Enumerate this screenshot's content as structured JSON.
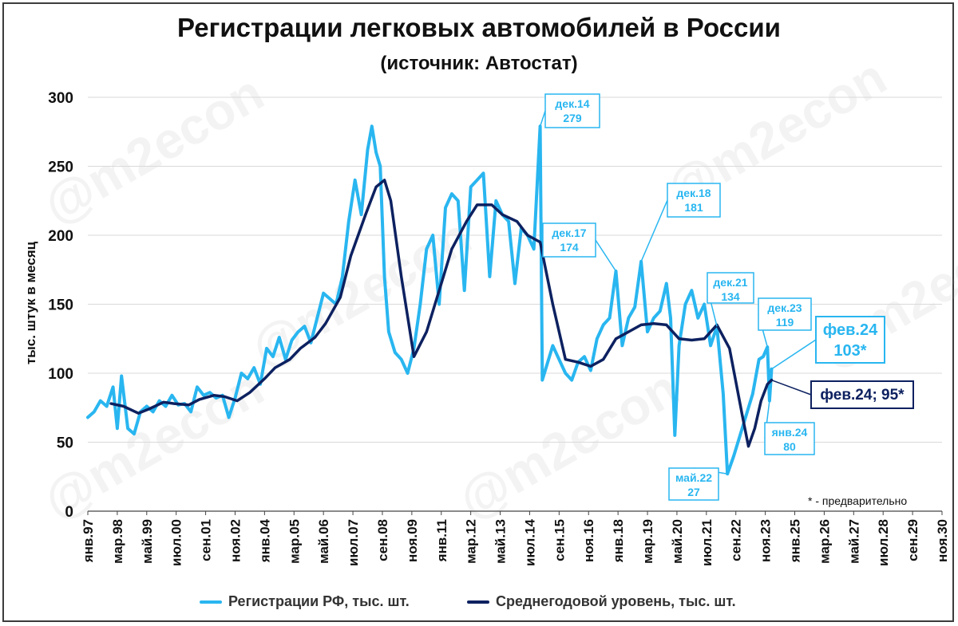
{
  "title": "Регистрации легковых автомобилей в России",
  "subtitle": "(источник: Автостат)",
  "watermark": "@m2econ",
  "footnote": "* - предварительно",
  "colors": {
    "registrations": "#29b6f0",
    "average": "#0d2160",
    "callout": "#29b6f0",
    "callout_dark": "#0d2160"
  },
  "chart_data": {
    "type": "line",
    "ylabel": "тыс. штук в месяц",
    "ylim": [
      0,
      300
    ],
    "yticks": [
      0,
      50,
      100,
      150,
      200,
      250,
      300
    ],
    "x_tick_labels": [
      "янв.97",
      "мар.98",
      "май.99",
      "июл.00",
      "сен.01",
      "ноя.02",
      "янв.04",
      "мар.05",
      "май.06",
      "июл.07",
      "сен.08",
      "ноя.09",
      "янв.11",
      "мар.12",
      "май.13",
      "июл.14",
      "сен.15",
      "ноя.16",
      "янв.18",
      "мар.19",
      "май.20",
      "июл.21",
      "сен.22",
      "ноя.23",
      "янв.25",
      "мар.26",
      "май.27",
      "июл.28",
      "сен.29",
      "ноя.30"
    ],
    "series": [
      {
        "name": "Регистрации РФ, тыс. шт.",
        "color": "#29b6f0",
        "points": [
          [
            "1997-01",
            68
          ],
          [
            "1997-04",
            72
          ],
          [
            "1997-07",
            80
          ],
          [
            "1997-10",
            76
          ],
          [
            "1998-01",
            90
          ],
          [
            "1998-03",
            60
          ],
          [
            "1998-05",
            98
          ],
          [
            "1998-08",
            60
          ],
          [
            "1998-11",
            56
          ],
          [
            "1999-02",
            72
          ],
          [
            "1999-05",
            76
          ],
          [
            "1999-08",
            72
          ],
          [
            "1999-11",
            80
          ],
          [
            "2000-02",
            76
          ],
          [
            "2000-05",
            84
          ],
          [
            "2000-08",
            77
          ],
          [
            "2000-11",
            78
          ],
          [
            "2001-02",
            72
          ],
          [
            "2001-05",
            90
          ],
          [
            "2001-08",
            84
          ],
          [
            "2001-11",
            86
          ],
          [
            "2002-02",
            82
          ],
          [
            "2002-05",
            84
          ],
          [
            "2002-08",
            68
          ],
          [
            "2002-11",
            82
          ],
          [
            "2003-02",
            100
          ],
          [
            "2003-05",
            96
          ],
          [
            "2003-08",
            104
          ],
          [
            "2003-11",
            92
          ],
          [
            "2004-02",
            118
          ],
          [
            "2004-05",
            112
          ],
          [
            "2004-08",
            126
          ],
          [
            "2004-11",
            110
          ],
          [
            "2005-02",
            124
          ],
          [
            "2005-05",
            130
          ],
          [
            "2005-08",
            134
          ],
          [
            "2005-11",
            122
          ],
          [
            "2006-02",
            140
          ],
          [
            "2006-05",
            158
          ],
          [
            "2006-08",
            154
          ],
          [
            "2006-11",
            150
          ],
          [
            "2007-02",
            170
          ],
          [
            "2007-05",
            210
          ],
          [
            "2007-08",
            240
          ],
          [
            "2007-11",
            215
          ],
          [
            "2008-02",
            262
          ],
          [
            "2008-04",
            279
          ],
          [
            "2008-06",
            260
          ],
          [
            "2008-08",
            250
          ],
          [
            "2008-10",
            170
          ],
          [
            "2008-12",
            130
          ],
          [
            "2009-03",
            115
          ],
          [
            "2009-06",
            110
          ],
          [
            "2009-09",
            100
          ],
          [
            "2009-12",
            118
          ],
          [
            "2010-03",
            150
          ],
          [
            "2010-06",
            190
          ],
          [
            "2010-09",
            200
          ],
          [
            "2010-12",
            150
          ],
          [
            "2011-03",
            220
          ],
          [
            "2011-06",
            230
          ],
          [
            "2011-09",
            225
          ],
          [
            "2011-12",
            160
          ],
          [
            "2012-03",
            235
          ],
          [
            "2012-06",
            240
          ],
          [
            "2012-09",
            245
          ],
          [
            "2012-12",
            170
          ],
          [
            "2013-03",
            225
          ],
          [
            "2013-06",
            215
          ],
          [
            "2013-09",
            210
          ],
          [
            "2013-12",
            165
          ],
          [
            "2014-03",
            205
          ],
          [
            "2014-06",
            200
          ],
          [
            "2014-09",
            190
          ],
          [
            "2014-12",
            279
          ],
          [
            "2015-01",
            95
          ],
          [
            "2015-03",
            105
          ],
          [
            "2015-06",
            120
          ],
          [
            "2015-09",
            110
          ],
          [
            "2015-12",
            100
          ],
          [
            "2016-03",
            95
          ],
          [
            "2016-06",
            108
          ],
          [
            "2016-09",
            112
          ],
          [
            "2016-12",
            102
          ],
          [
            "2017-03",
            125
          ],
          [
            "2017-06",
            135
          ],
          [
            "2017-09",
            140
          ],
          [
            "2017-12",
            174
          ],
          [
            "2018-03",
            120
          ],
          [
            "2018-06",
            140
          ],
          [
            "2018-09",
            148
          ],
          [
            "2018-12",
            181
          ],
          [
            "2019-03",
            130
          ],
          [
            "2019-06",
            140
          ],
          [
            "2019-09",
            145
          ],
          [
            "2019-12",
            165
          ],
          [
            "2020-02",
            140
          ],
          [
            "2020-04",
            55
          ],
          [
            "2020-06",
            120
          ],
          [
            "2020-09",
            150
          ],
          [
            "2020-12",
            160
          ],
          [
            "2021-03",
            140
          ],
          [
            "2021-06",
            150
          ],
          [
            "2021-09",
            120
          ],
          [
            "2021-12",
            134
          ],
          [
            "2022-03",
            85
          ],
          [
            "2022-05",
            27
          ],
          [
            "2022-08",
            40
          ],
          [
            "2022-11",
            55
          ],
          [
            "2023-02",
            70
          ],
          [
            "2023-05",
            85
          ],
          [
            "2023-08",
            110
          ],
          [
            "2023-10",
            112
          ],
          [
            "2023-12",
            119
          ],
          [
            "2024-01",
            80
          ],
          [
            "2024-02",
            103
          ]
        ]
      },
      {
        "name": "Среднегодовой уровень, тыс. шт.",
        "color": "#0d2160",
        "points": [
          [
            "1997-12",
            78
          ],
          [
            "1998-06",
            76
          ],
          [
            "1999-01",
            71
          ],
          [
            "1999-06",
            74
          ],
          [
            "2000-01",
            79
          ],
          [
            "2000-06",
            78
          ],
          [
            "2001-01",
            77
          ],
          [
            "2001-06",
            81
          ],
          [
            "2002-01",
            84
          ],
          [
            "2002-06",
            83
          ],
          [
            "2002-12",
            80
          ],
          [
            "2003-06",
            86
          ],
          [
            "2004-01",
            96
          ],
          [
            "2004-06",
            104
          ],
          [
            "2005-01",
            110
          ],
          [
            "2005-06",
            118
          ],
          [
            "2006-01",
            126
          ],
          [
            "2006-06",
            136
          ],
          [
            "2007-01",
            155
          ],
          [
            "2007-06",
            185
          ],
          [
            "2008-01",
            215
          ],
          [
            "2008-06",
            235
          ],
          [
            "2008-10",
            240
          ],
          [
            "2009-01",
            225
          ],
          [
            "2009-06",
            170
          ],
          [
            "2009-12",
            112
          ],
          [
            "2010-06",
            130
          ],
          [
            "2011-01",
            165
          ],
          [
            "2011-06",
            190
          ],
          [
            "2012-01",
            210
          ],
          [
            "2012-06",
            222
          ],
          [
            "2013-01",
            222
          ],
          [
            "2013-06",
            215
          ],
          [
            "2014-01",
            210
          ],
          [
            "2014-06",
            200
          ],
          [
            "2014-12",
            195
          ],
          [
            "2015-06",
            150
          ],
          [
            "2015-12",
            110
          ],
          [
            "2016-06",
            108
          ],
          [
            "2016-12",
            105
          ],
          [
            "2017-06",
            110
          ],
          [
            "2017-12",
            125
          ],
          [
            "2018-06",
            130
          ],
          [
            "2018-12",
            135
          ],
          [
            "2019-06",
            136
          ],
          [
            "2019-12",
            135
          ],
          [
            "2020-06",
            125
          ],
          [
            "2020-12",
            124
          ],
          [
            "2021-06",
            125
          ],
          [
            "2021-12",
            135
          ],
          [
            "2022-06",
            118
          ],
          [
            "2022-12",
            70
          ],
          [
            "2023-03",
            47
          ],
          [
            "2023-06",
            60
          ],
          [
            "2023-09",
            80
          ],
          [
            "2023-12",
            92
          ],
          [
            "2024-02",
            95
          ]
        ]
      }
    ],
    "annotations": [
      {
        "label": "дек.14",
        "value": "279",
        "date": "2014-12",
        "y": 279,
        "style": "light"
      },
      {
        "label": "дек.17",
        "value": "174",
        "date": "2017-12",
        "y": 174,
        "style": "light"
      },
      {
        "label": "дек.18",
        "value": "181",
        "date": "2018-12",
        "y": 181,
        "style": "light"
      },
      {
        "label": "дек.21",
        "value": "134",
        "date": "2021-12",
        "y": 134,
        "style": "light"
      },
      {
        "label": "дек.23",
        "value": "119",
        "date": "2023-12",
        "y": 119,
        "style": "light"
      },
      {
        "label": "май.22",
        "value": "27",
        "date": "2022-05",
        "y": 27,
        "style": "light"
      },
      {
        "label": "янв.24",
        "value": "80",
        "date": "2024-01",
        "y": 80,
        "style": "light"
      },
      {
        "label": "фев.24",
        "value": "103*",
        "date": "2024-02",
        "y": 103,
        "style": "big"
      },
      {
        "label": "фев.24; 95*",
        "value": "",
        "date": "2024-02",
        "y": 95,
        "style": "dark"
      }
    ]
  }
}
